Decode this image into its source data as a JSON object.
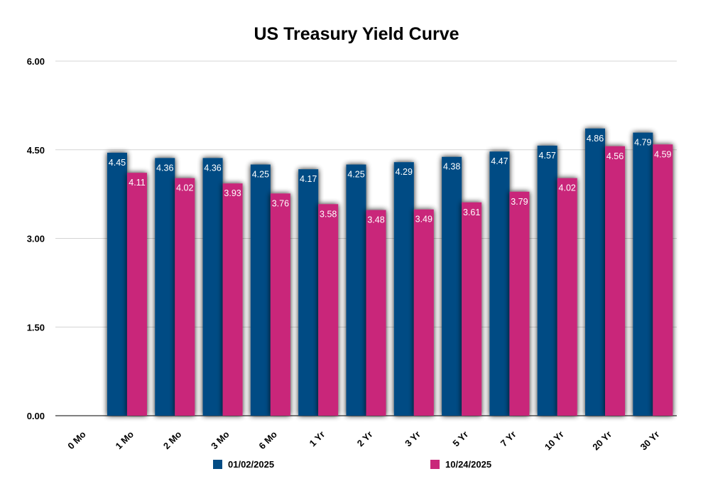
{
  "chart_data": {
    "type": "bar",
    "title": "US Treasury Yield Curve",
    "xlabel": "",
    "ylabel": "",
    "ylim": [
      0,
      6
    ],
    "yticks": [
      "0.00",
      "1.50",
      "3.00",
      "4.50",
      "6.00"
    ],
    "ytick_values": [
      0,
      1.5,
      3,
      4.5,
      6
    ],
    "grid": true,
    "legend_position": "bottom",
    "categories": [
      "0 Mo",
      "1 Mo",
      "2 Mo",
      "3 Mo",
      "6 Mo",
      "1 Yr",
      "2 Yr",
      "3 Yr",
      "5 Yr",
      "7 Yr",
      "10 Yr",
      "20 Yr",
      "30 Yr"
    ],
    "series": [
      {
        "name": "01/02/2025",
        "color": "#034c84",
        "values": [
          null,
          4.45,
          4.36,
          4.36,
          4.25,
          4.17,
          4.25,
          4.29,
          4.38,
          4.47,
          4.57,
          4.86,
          4.79
        ],
        "labels": [
          "",
          "4.45",
          "4.36",
          "4.36",
          "4.25",
          "4.17",
          "4.25",
          "4.29",
          "4.38",
          "4.47",
          "4.57",
          "4.86",
          "4.79"
        ]
      },
      {
        "name": "10/24/2025",
        "color": "#c9287a",
        "values": [
          null,
          4.11,
          4.02,
          3.93,
          3.76,
          3.58,
          3.48,
          3.49,
          3.61,
          3.79,
          4.02,
          4.56,
          4.59
        ],
        "labels": [
          "",
          "4.11",
          "4.02",
          "3.93",
          "3.76",
          "3.58",
          "3.48",
          "3.49",
          "3.61",
          "3.79",
          "4.02",
          "4.56",
          "4.59"
        ]
      }
    ]
  }
}
